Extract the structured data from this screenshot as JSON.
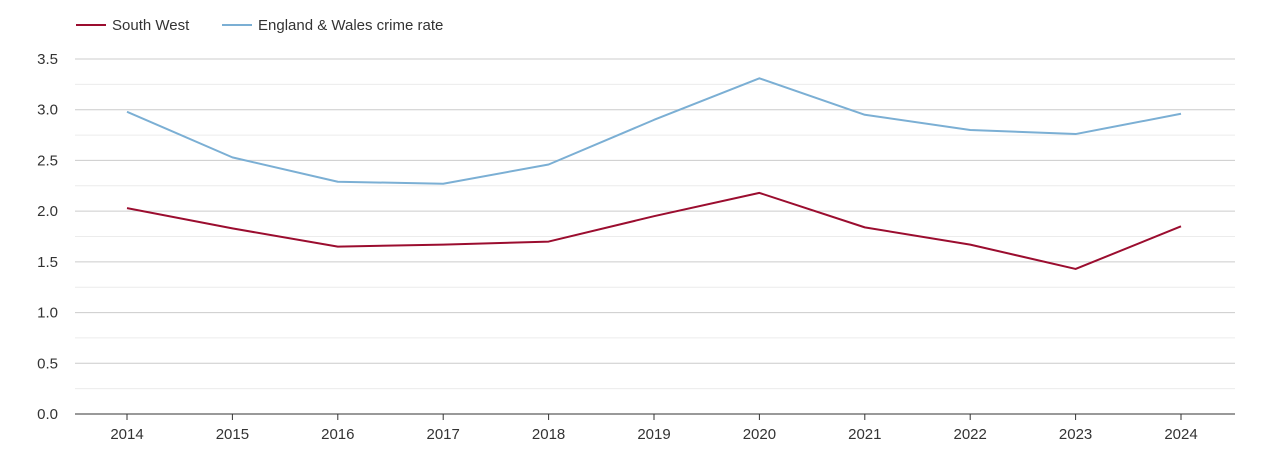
{
  "chart_data": {
    "type": "line",
    "title": "",
    "xlabel": "",
    "ylabel": "",
    "x": [
      "2014",
      "2015",
      "2016",
      "2017",
      "2018",
      "2019",
      "2020",
      "2021",
      "2022",
      "2023",
      "2024"
    ],
    "ylim": [
      0,
      3.5
    ],
    "yticks": [
      "0.0",
      "0.5",
      "1.0",
      "1.5",
      "2.0",
      "2.5",
      "3.0",
      "3.5"
    ],
    "grid": true,
    "legend_position": "top-left",
    "series": [
      {
        "name": "South West",
        "color": "#9b0d2f",
        "values": [
          2.03,
          1.83,
          1.65,
          1.67,
          1.7,
          1.95,
          2.18,
          1.84,
          1.67,
          1.43,
          1.85
        ]
      },
      {
        "name": "England & Wales crime rate",
        "color": "#7bafd4",
        "values": [
          2.98,
          2.53,
          2.29,
          2.27,
          2.46,
          2.9,
          3.31,
          2.95,
          2.8,
          2.76,
          2.96
        ]
      }
    ]
  }
}
